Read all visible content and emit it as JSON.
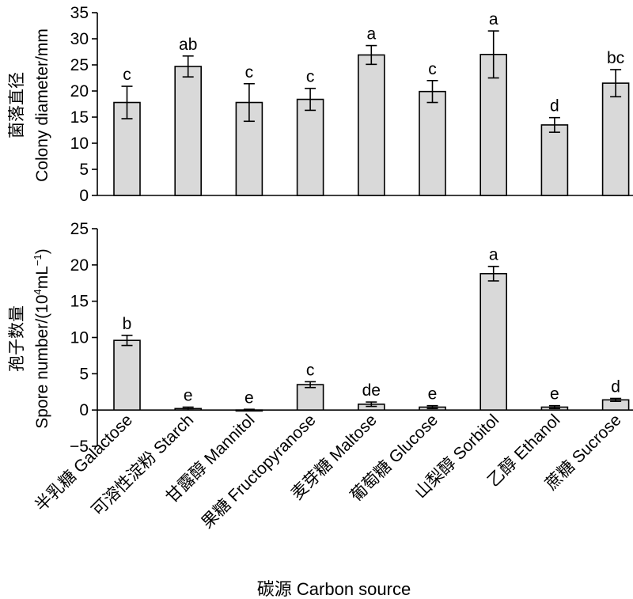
{
  "chart_data": {
    "xlabel": "碳源 Carbon source",
    "categories": [
      "半乳糖 Galactose",
      "可溶性淀粉 Starch",
      "甘露醇 Mannitol",
      "果糖 Fructopyranose",
      "麦芽糖 Maltose",
      "葡萄糖 Glucose",
      "山梨醇 Sorbitol",
      "乙醇 Ethanol",
      "蔗糖 Sucrose"
    ],
    "panels": [
      {
        "type": "bar",
        "ylabel_cn": "菌落直径",
        "ylabel_en": "Colony diameter/mm",
        "ylim": [
          0,
          35
        ],
        "yticks": [
          0,
          5,
          10,
          15,
          20,
          25,
          30,
          35
        ],
        "values": [
          17.8,
          24.7,
          17.8,
          18.4,
          26.9,
          19.9,
          27.0,
          13.5,
          21.5
        ],
        "errors": [
          3.1,
          2.0,
          3.6,
          2.1,
          1.8,
          2.1,
          4.5,
          1.4,
          2.6
        ],
        "labels": [
          "c",
          "ab",
          "c",
          "c",
          "a",
          "c",
          "a",
          "d",
          "bc"
        ]
      },
      {
        "type": "bar",
        "ylabel_cn": "孢子数量",
        "ylabel_en_pre": "Spore number/(10",
        "ylabel_en_sup1": "4",
        "ylabel_en_mid": "mL",
        "ylabel_en_sup2": "−1",
        "ylabel_en_post": ")",
        "ylim": [
          -5,
          25
        ],
        "yticks": [
          -5,
          0,
          5,
          10,
          15,
          20,
          25
        ],
        "values": [
          9.6,
          0.2,
          0.0,
          3.5,
          0.8,
          0.4,
          18.8,
          0.4,
          1.4
        ],
        "errors": [
          0.7,
          0.2,
          0.1,
          0.4,
          0.3,
          0.2,
          1.0,
          0.2,
          0.2
        ],
        "labels": [
          "b",
          "e",
          "e",
          "c",
          "de",
          "e",
          "a",
          "e",
          "d"
        ]
      }
    ]
  }
}
